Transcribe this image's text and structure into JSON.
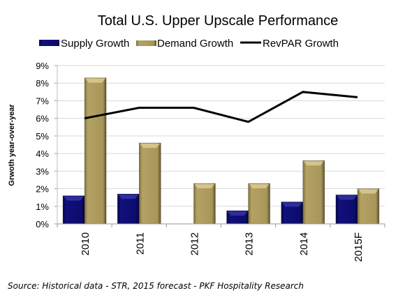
{
  "chart_data": {
    "type": "bar",
    "title": "Total U.S. Upper Upscale Performance",
    "xlabel": "",
    "ylabel": "Grwoth year-over-year",
    "categories": [
      "2010",
      "2011",
      "2012",
      "2013",
      "2014",
      "2015F"
    ],
    "ylim": [
      0,
      9
    ],
    "yticks": [
      "0%",
      "1%",
      "2%",
      "3%",
      "4%",
      "5%",
      "6%",
      "7%",
      "8%",
      "9%"
    ],
    "grid": true,
    "legend_position": "top",
    "series": [
      {
        "name": "Supply Growth",
        "kind": "bar",
        "color": "#0d0d6b",
        "values": [
          1.6,
          1.7,
          0.0,
          0.75,
          1.25,
          1.65
        ]
      },
      {
        "name": "Demand Growth",
        "kind": "bar",
        "color": "#a8955a",
        "values": [
          8.3,
          4.6,
          2.3,
          2.3,
          3.6,
          2.0
        ]
      },
      {
        "name": "RevPAR Growth",
        "kind": "line",
        "color": "#000000",
        "values": [
          6.0,
          6.6,
          6.6,
          5.8,
          7.5,
          7.2
        ]
      }
    ]
  },
  "legend": {
    "supply": "Supply Growth",
    "demand": "Demand Growth",
    "revpar": "RevPAR Growth"
  },
  "source": "Source: Historical data - STR, 2015 forecast - PKF Hospitality Research"
}
